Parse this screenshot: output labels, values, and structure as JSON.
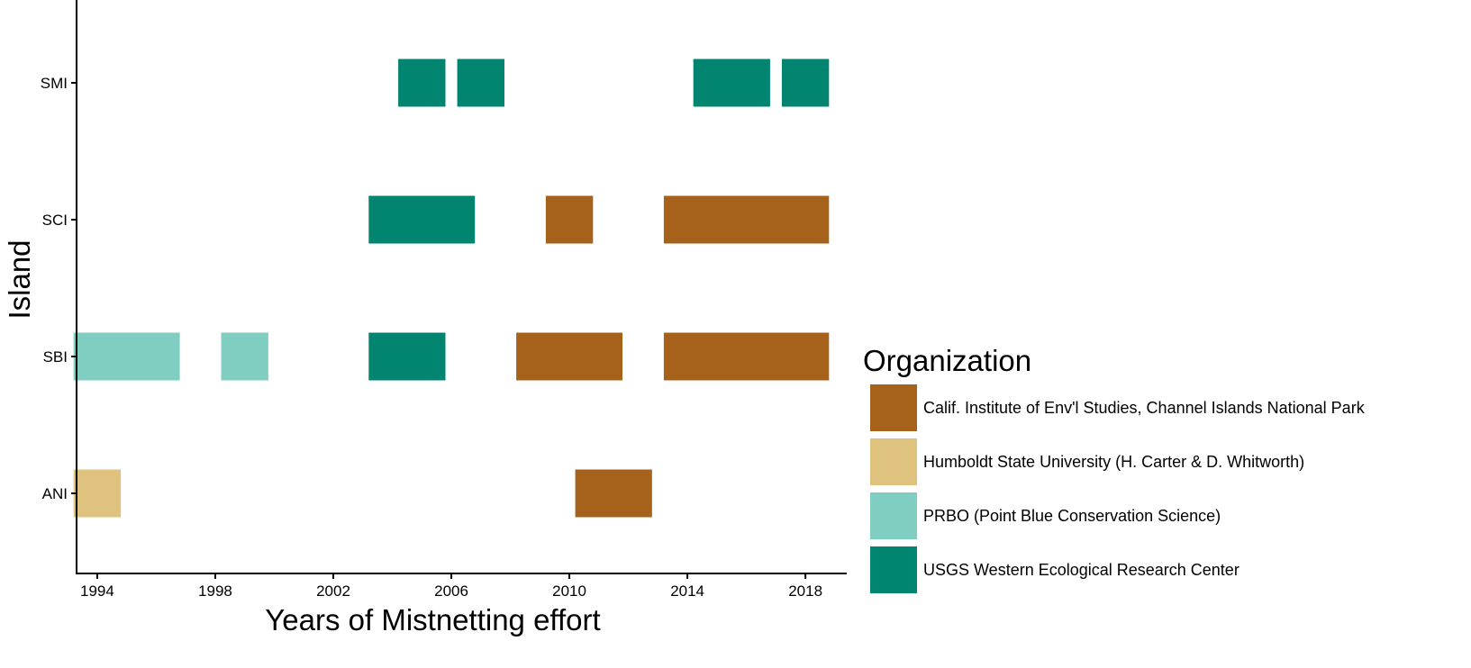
{
  "chart_data": {
    "type": "bar",
    "subtype": "horizontal-timeline",
    "title": "",
    "xlabel": "Years of Mistnetting effort",
    "ylabel": "Island",
    "xlim": [
      1993.3,
      2019.4
    ],
    "x_ticks": [
      1994,
      1998,
      2002,
      2006,
      2010,
      2014,
      2018
    ],
    "x_tick_labels": [
      "1994",
      "1998",
      "2002",
      "2006",
      "2010",
      "2014",
      "2018"
    ],
    "categories": [
      "SMI",
      "SCI",
      "SBI",
      "ANI"
    ],
    "grid": false,
    "legend": {
      "title": "Organization",
      "position": "right",
      "entries": [
        {
          "key": "cies",
          "label": "Calif. Institute of Env'l Studies, Channel Islands National Park",
          "color": "#A6611A"
        },
        {
          "key": "hsu",
          "label": "Humboldt State University (H. Carter & D. Whitworth)",
          "color": "#DFC27D"
        },
        {
          "key": "prbo",
          "label": "PRBO (Point Blue Conservation Science)",
          "color": "#80CDC1"
        },
        {
          "key": "usgs",
          "label": "USGS Western Ecological Research Center",
          "color": "#018571"
        }
      ]
    },
    "segments": [
      {
        "island": "SMI",
        "org": "usgs",
        "start": 2004.2,
        "end": 2005.8
      },
      {
        "island": "SMI",
        "org": "usgs",
        "start": 2006.2,
        "end": 2007.8
      },
      {
        "island": "SMI",
        "org": "usgs",
        "start": 2014.2,
        "end": 2016.8
      },
      {
        "island": "SMI",
        "org": "usgs",
        "start": 2017.2,
        "end": 2018.8
      },
      {
        "island": "SCI",
        "org": "usgs",
        "start": 2003.2,
        "end": 2006.8
      },
      {
        "island": "SCI",
        "org": "cies",
        "start": 2009.2,
        "end": 2010.8
      },
      {
        "island": "SCI",
        "org": "cies",
        "start": 2013.2,
        "end": 2018.8
      },
      {
        "island": "SBI",
        "org": "prbo",
        "start": 1993.2,
        "end": 1996.8
      },
      {
        "island": "SBI",
        "org": "prbo",
        "start": 1998.2,
        "end": 1999.8
      },
      {
        "island": "SBI",
        "org": "usgs",
        "start": 2003.2,
        "end": 2005.8
      },
      {
        "island": "SBI",
        "org": "cies",
        "start": 2008.2,
        "end": 2011.8
      },
      {
        "island": "SBI",
        "org": "cies",
        "start": 2013.2,
        "end": 2018.8
      },
      {
        "island": "ANI",
        "org": "hsu",
        "start": 1993.2,
        "end": 1994.8
      },
      {
        "island": "ANI",
        "org": "cies",
        "start": 2010.2,
        "end": 2012.8
      }
    ]
  }
}
